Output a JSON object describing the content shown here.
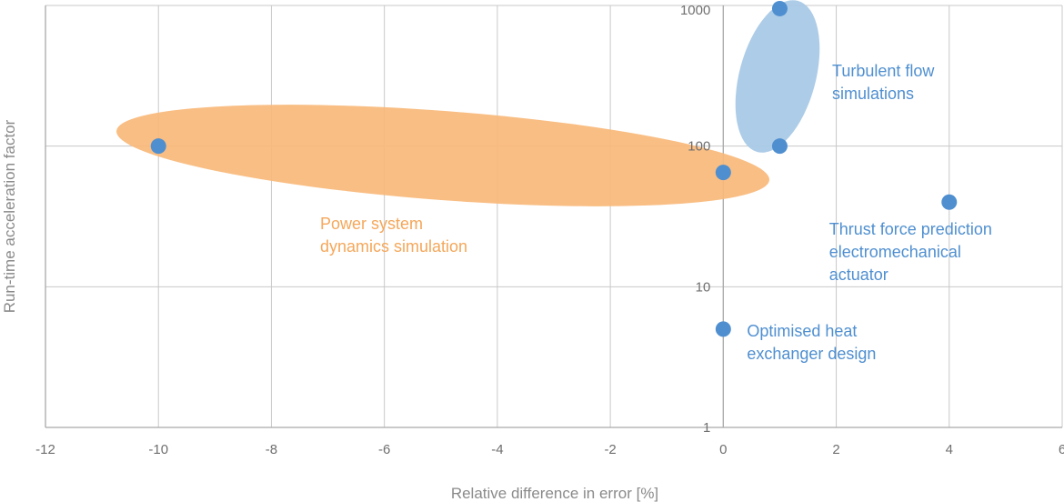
{
  "chart_data": {
    "type": "scatter",
    "xlabel": "Relative difference in error [%]",
    "ylabel": "Run-time acceleration factor",
    "xlim": [
      -12,
      6
    ],
    "ylim": [
      1,
      1000
    ],
    "y_scale": "log",
    "grid": true,
    "x_ticks": [
      "-12",
      "-10",
      "-8",
      "-6",
      "-4",
      "-2",
      "0",
      "2",
      "4",
      "6"
    ],
    "y_ticks": [
      "1",
      "10",
      "100",
      "1000"
    ],
    "colors": {
      "orange": "#f5a75a",
      "blue": "#4f8fd0",
      "blue_region": "#a9c9e6",
      "orange_region": "#f8b87a"
    },
    "regions": [
      {
        "label_lines": [
          "Power system",
          "dynamics simulation"
        ],
        "color": "orange",
        "points": [
          {
            "x": -10,
            "y": 100
          },
          {
            "x": 0,
            "y": 65
          }
        ]
      },
      {
        "label_lines": [
          "Turbulent flow",
          "simulations"
        ],
        "color": "blue",
        "points": [
          {
            "x": 1,
            "y": 950
          },
          {
            "x": 1,
            "y": 100
          }
        ]
      }
    ],
    "points": [
      {
        "x": -10,
        "y": 100
      },
      {
        "x": 0,
        "y": 65
      },
      {
        "x": 1,
        "y": 950
      },
      {
        "x": 1,
        "y": 100
      },
      {
        "x": 4,
        "y": 40
      },
      {
        "x": 0,
        "y": 5
      }
    ],
    "annotations": [
      {
        "lines": [
          "Thrust force prediction",
          "electromechanical",
          "actuator"
        ],
        "color": "blue",
        "point": {
          "x": 4,
          "y": 40
        }
      },
      {
        "lines": [
          "Optimised heat",
          "exchanger design"
        ],
        "color": "blue",
        "point": {
          "x": 0,
          "y": 5
        }
      }
    ]
  }
}
